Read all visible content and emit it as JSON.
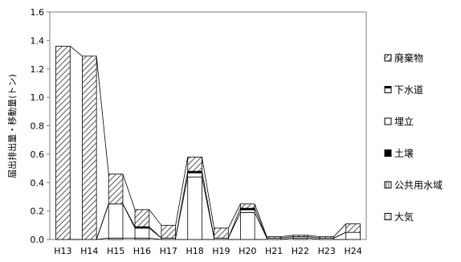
{
  "chart_data": {
    "type": "bar",
    "stacked": true,
    "categories": [
      "H13",
      "H14",
      "H15",
      "H16",
      "H17",
      "H18",
      "H19",
      "H20",
      "H21",
      "H22",
      "H23",
      "H24"
    ],
    "ylabel": "届出排出量・移動量(トン)",
    "ylim": [
      0,
      1.6
    ],
    "yticks": [
      0.0,
      0.2,
      0.4,
      0.6,
      0.8,
      1.0,
      1.2,
      1.4,
      1.6
    ],
    "ytick_labels": [
      "0.0",
      "0.2",
      "0.4",
      "0.6",
      "0.8",
      "1.0",
      "1.2",
      "1.4",
      "1.6"
    ],
    "grid": false,
    "legend_position": "right",
    "connector_lines": true,
    "series": [
      {
        "name": "大気",
        "values": [
          0,
          0,
          0.01,
          0.01,
          0,
          0,
          0,
          0,
          0,
          0.01,
          0,
          0
        ],
        "pattern": "dots"
      },
      {
        "name": "公共用水域",
        "values": [
          0,
          0,
          0,
          0,
          0,
          0,
          0,
          0,
          0,
          0,
          0,
          0
        ],
        "pattern": "vertical"
      },
      {
        "name": "土壌",
        "values": [
          0,
          0,
          0,
          0,
          0,
          0,
          0,
          0,
          0,
          0,
          0,
          0
        ],
        "pattern": "solid-black"
      },
      {
        "name": "埋立",
        "values": [
          0,
          0,
          0.24,
          0.07,
          0.01,
          0.44,
          0.01,
          0.19,
          0.01,
          0.01,
          0.01,
          0.05
        ],
        "pattern": "white"
      },
      {
        "name": "下水道",
        "values": [
          0,
          0,
          0,
          0.01,
          0,
          0.04,
          0,
          0.03,
          0,
          0,
          0,
          0
        ],
        "pattern": "top-bar"
      },
      {
        "name": "廃棄物",
        "values": [
          1.36,
          1.29,
          0.21,
          0.12,
          0.09,
          0.1,
          0.07,
          0.03,
          0.01,
          0.01,
          0.01,
          0.06
        ],
        "pattern": "hatch"
      }
    ]
  }
}
